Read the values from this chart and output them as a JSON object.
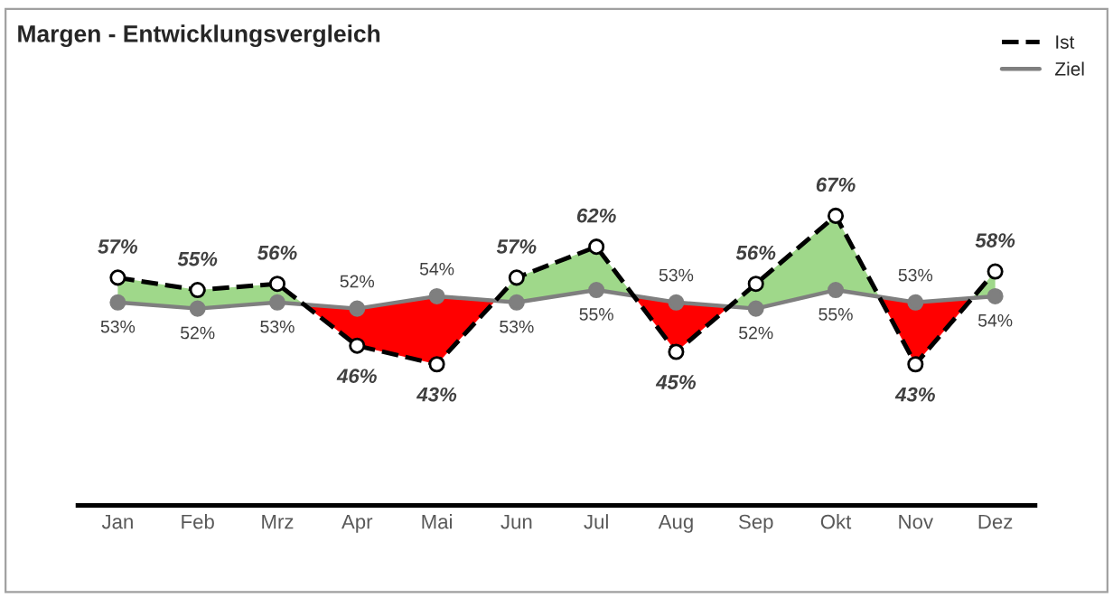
{
  "chart_data": {
    "type": "line",
    "title": "Margen - Entwicklungsvergleich",
    "categories": [
      "Jan",
      "Feb",
      "Mrz",
      "Apr",
      "Mai",
      "Jun",
      "Jul",
      "Aug",
      "Sep",
      "Okt",
      "Nov",
      "Dez"
    ],
    "series": [
      {
        "name": "Ist",
        "color": "#000000",
        "line_style": "dashed",
        "marker": "circle",
        "values": [
          57,
          55,
          56,
          46,
          43,
          57,
          62,
          45,
          56,
          67,
          43,
          58
        ],
        "value_labels": [
          "57%",
          "55%",
          "56%",
          "46%",
          "43%",
          "57%",
          "62%",
          "45%",
          "56%",
          "67%",
          "43%",
          "58%"
        ]
      },
      {
        "name": "Ziel",
        "color": "#7f7f7f",
        "line_style": "solid",
        "marker": "circle",
        "values": [
          53,
          52,
          53,
          52,
          54,
          53,
          55,
          53,
          52,
          55,
          53,
          54
        ],
        "value_labels": [
          "53%",
          "52%",
          "53%",
          "52%",
          "54%",
          "53%",
          "55%",
          "53%",
          "52%",
          "55%",
          "53%",
          "54%"
        ]
      }
    ],
    "tick_labels": "x",
    "grid": false,
    "legend": "top right"
  }
}
